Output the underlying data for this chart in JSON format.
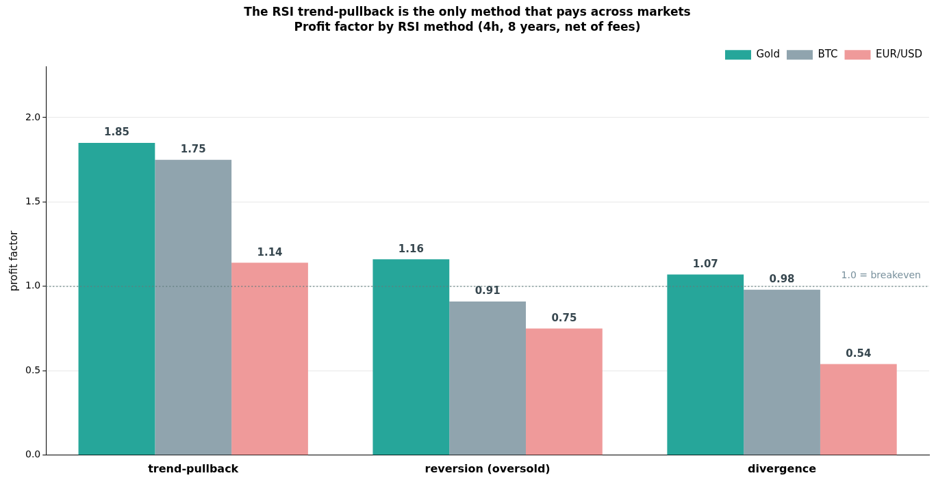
{
  "chart_data": {
    "type": "bar",
    "title": "The RSI trend-pullback is the only method that pays across markets",
    "subtitle": "Profit factor by RSI method (4h, 8 years, net of fees)",
    "ylabel": "profit factor",
    "categories": [
      "trend-pullback",
      "reversion (oversold)",
      "divergence"
    ],
    "series": [
      {
        "name": "Gold",
        "color": "#26a69a",
        "values": [
          1.85,
          1.16,
          1.07
        ]
      },
      {
        "name": "BTC",
        "color": "#90a4ae",
        "values": [
          1.75,
          0.91,
          0.98
        ]
      },
      {
        "name": "EUR/USD",
        "color": "#ef9a9a",
        "values": [
          1.14,
          0.75,
          0.54
        ]
      }
    ],
    "ylim": [
      0,
      2.3
    ],
    "yticks": [
      {
        "value": 0,
        "label": "0.0"
      },
      0.5,
      {
        "value": 1,
        "label": "1.0"
      },
      1.5,
      {
        "value": 2,
        "label": "2.0"
      }
    ],
    "grid": "y",
    "legend": "top right",
    "data_labels": true,
    "ref_lines": [
      {
        "axis": "y",
        "value": 1,
        "label": "1.0 = breakeven",
        "color": "#607d7d",
        "line_style": "dotted"
      }
    ]
  }
}
